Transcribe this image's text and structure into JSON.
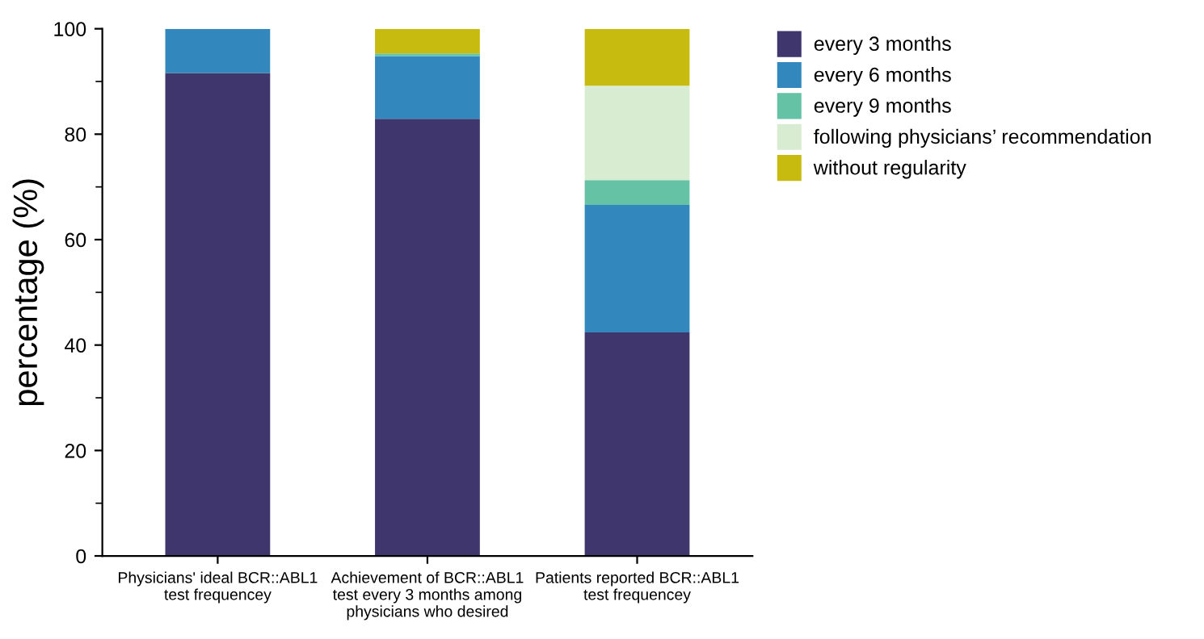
{
  "chart_data": {
    "type": "bar",
    "stacked": true,
    "ylabel": "percentage (%)",
    "categories": [
      "Physicians' ideal BCR::ABL1\ntest frequencey",
      "Achievement of BCR::ABL1\ntest every 3 months among\nphysicians who desired",
      "Patients reported BCR::ABL1\ntest frequencey"
    ],
    "series": [
      {
        "name": "every 3 months",
        "color": "#3f366d",
        "values": [
          91.6,
          82.9,
          42.4
        ]
      },
      {
        "name": "every 6 months",
        "color": "#3288bd",
        "values": [
          8.4,
          11.9,
          24.2
        ]
      },
      {
        "name": "every 9 months",
        "color": "#66c2a5",
        "values": [
          0,
          0.5,
          4.7
        ]
      },
      {
        "name": "following physicians’ recommendation",
        "color": "#d8ecd1",
        "values": [
          0,
          0,
          17.9
        ]
      },
      {
        "name": "without regularity",
        "color": "#c8bb10",
        "values": [
          0,
          4.7,
          10.8
        ]
      }
    ],
    "ylim": [
      0,
      100
    ],
    "yticks": [
      0,
      {
        "value": 10,
        "label": null
      },
      20,
      {
        "value": 30,
        "label": null
      },
      40,
      {
        "value": 50,
        "label": null
      },
      60,
      {
        "value": 70,
        "label": null
      },
      80,
      {
        "value": 90,
        "label": null
      },
      100
    ],
    "grid": false,
    "legend": "right"
  }
}
